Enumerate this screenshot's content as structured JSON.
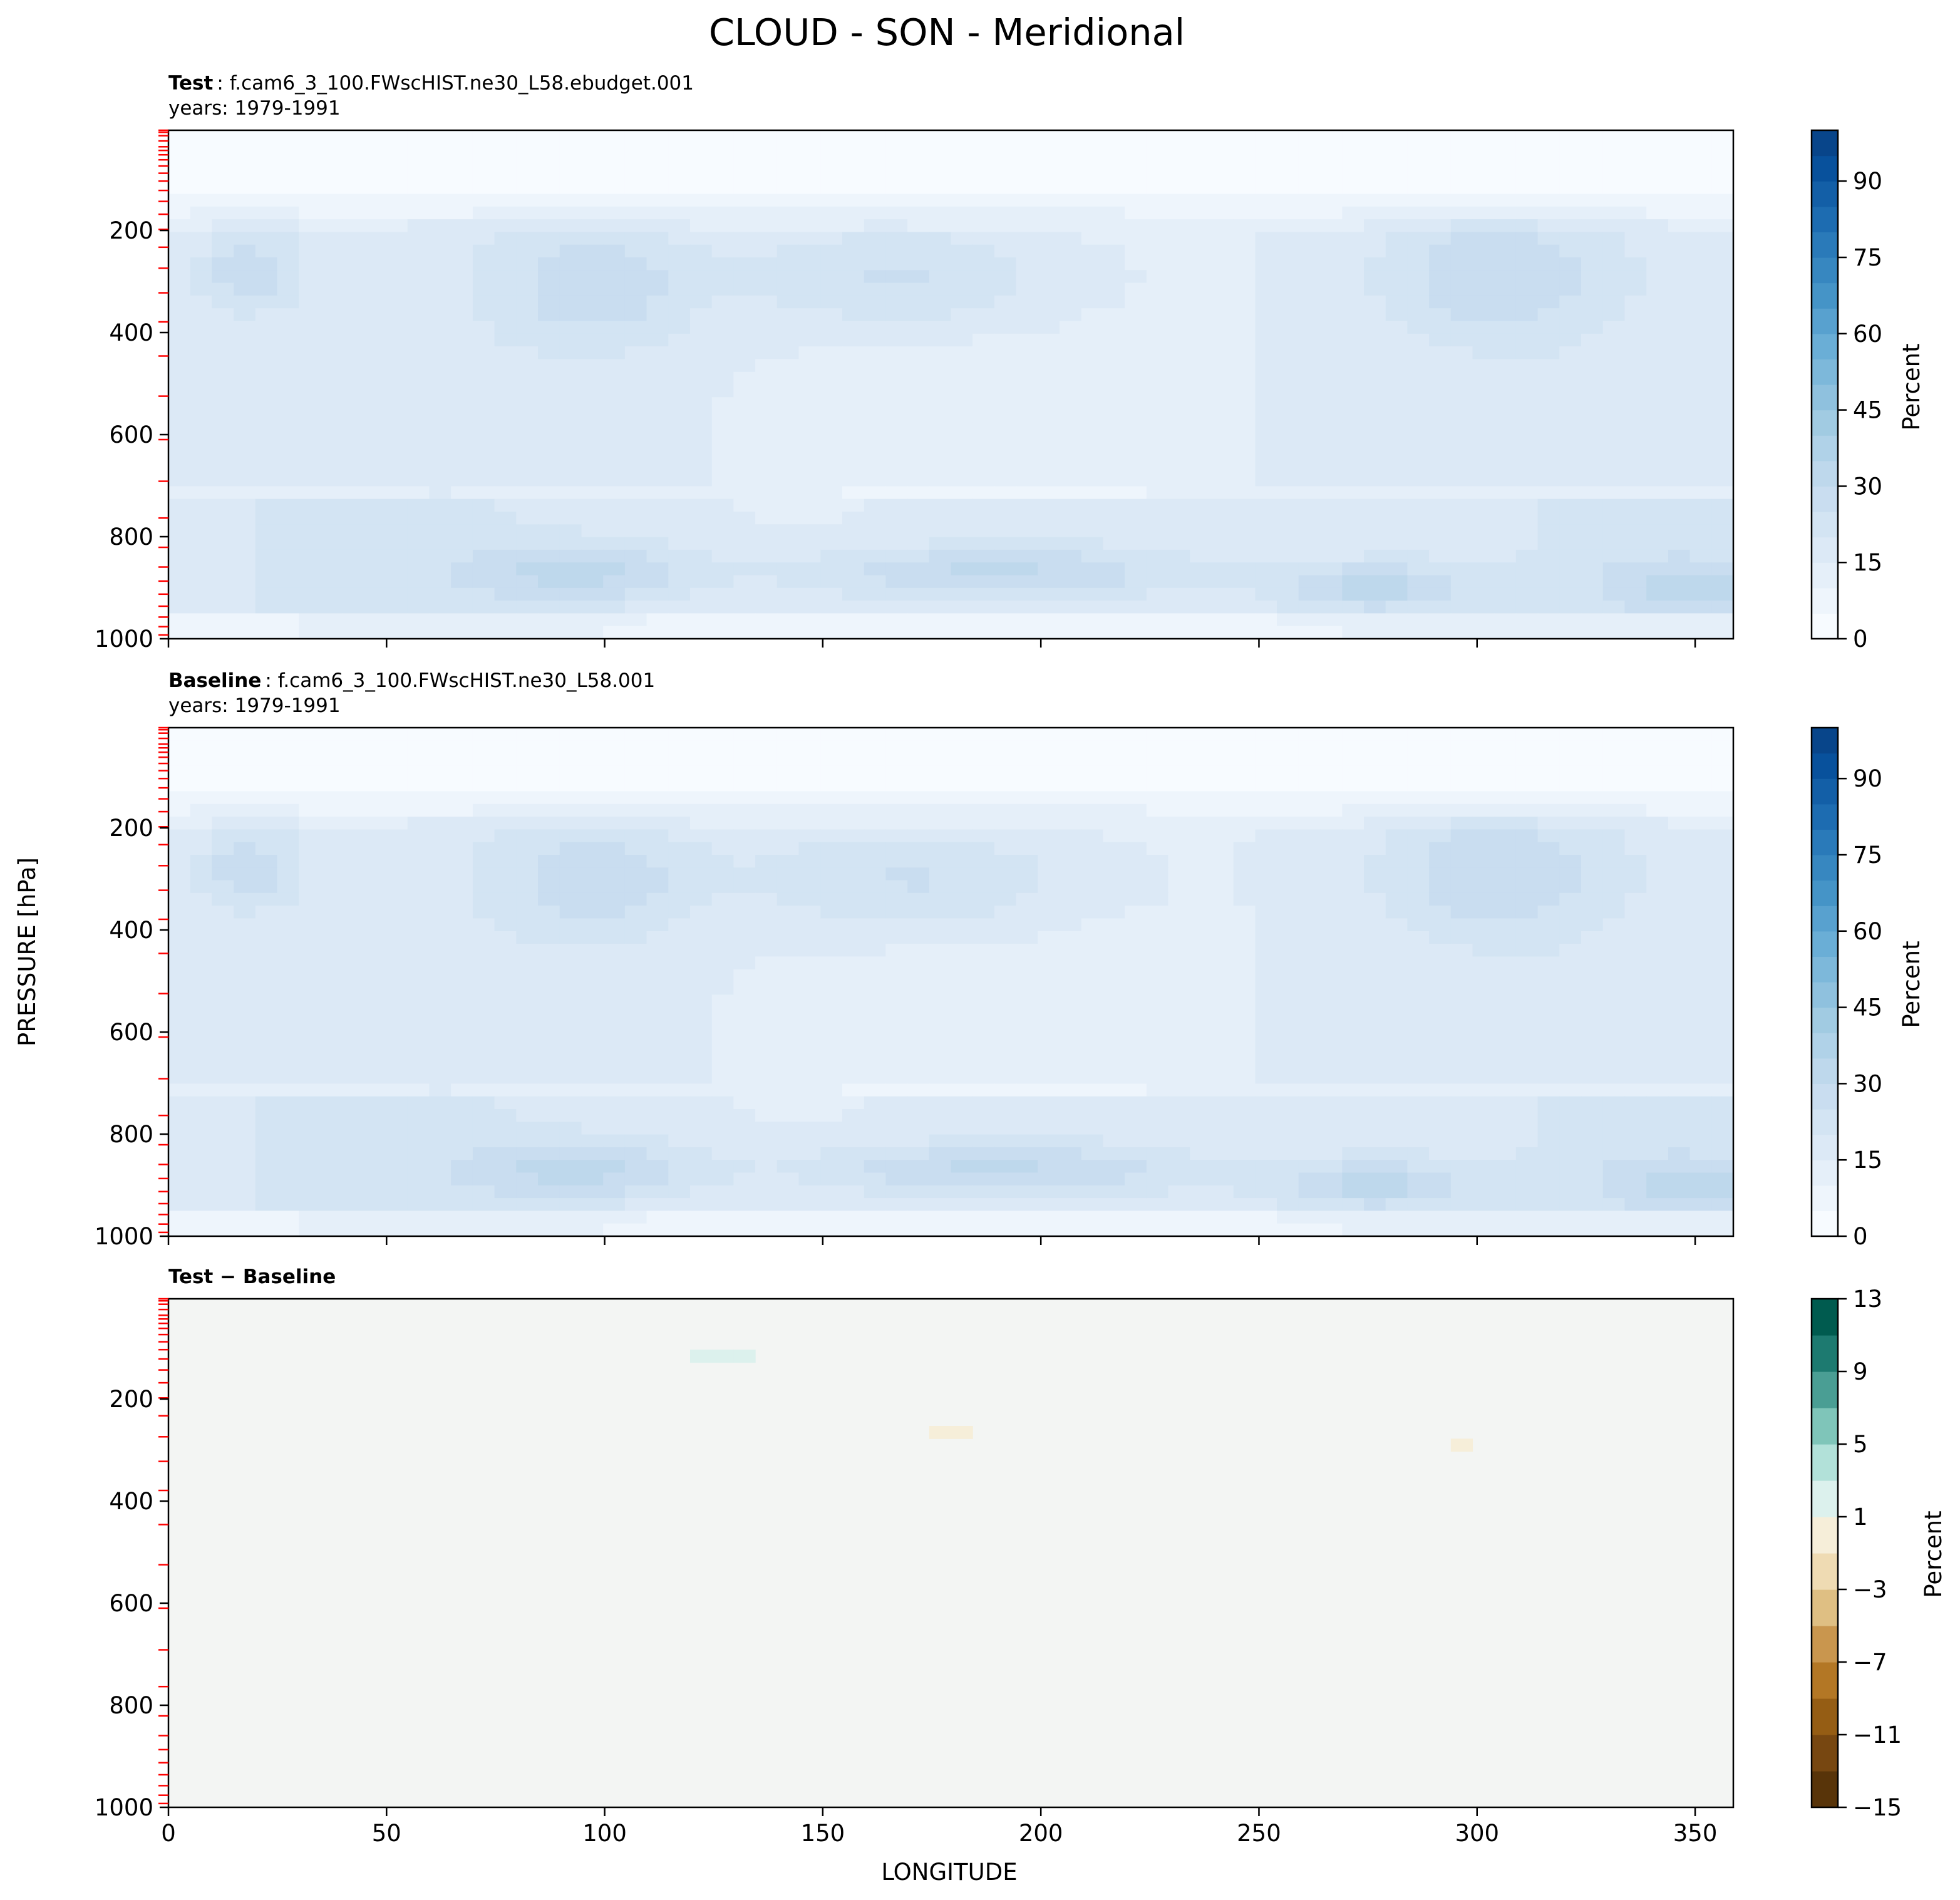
{
  "figure": {
    "title": "CLOUD - SON - Meridional",
    "y_axis_label": "PRESSURE [hPa]",
    "x_axis_label": "LONGITUDE"
  },
  "colors": {
    "blues": [
      "#f7fbff",
      "#eef5fc",
      "#e5eff9",
      "#dce9f6",
      "#d3e4f3",
      "#c9ddf0",
      "#bed8ec",
      "#b0d2e8",
      "#a1cbe2",
      "#8fc1de",
      "#7db8da",
      "#6aaed6",
      "#58a1cf",
      "#4594c7",
      "#3787c0",
      "#2a7ab9",
      "#1d6cb1",
      "#135fa7",
      "#08519c",
      "#08458a",
      "#083979",
      "#08306b"
    ],
    "diff": [
      "#583409",
      "#774711",
      "#955d14",
      "#b37725",
      "#c9964e",
      "#dfbf83",
      "#efdbb3",
      "#f6eed9",
      "#f5f5f5",
      "#dcf1ed",
      "#b2e1d9",
      "#7fc5b9",
      "#4a9e94",
      "#1d7a70",
      "#005b4f",
      "#003c30"
    ],
    "background_diff": "#f3f5f3",
    "mark_red": "#ff0000"
  },
  "chart_data": [
    {
      "type": "heatmap",
      "panel": "test",
      "label_bold": "Test",
      "label_rest": ": f.cam6_3_100.FWscHIST.ne30_L58.ebudget.001",
      "years": "years: 1979-1991",
      "x_range": [
        0,
        358.75
      ],
      "y_range": [
        1000,
        3.64
      ],
      "y_ticks": [
        "200",
        "400",
        "600",
        "800",
        "1000"
      ],
      "y_tick_values": [
        200,
        400,
        600,
        800,
        1000
      ],
      "x_tick_values": [
        0,
        50,
        100,
        150,
        200,
        250,
        300,
        350
      ],
      "colorbar": {
        "label": "Percent",
        "range": [
          0,
          100
        ],
        "levels_step": 5,
        "ticks": [
          "0",
          "15",
          "30",
          "45",
          "60",
          "75",
          "90"
        ],
        "tick_values": [
          0,
          15,
          30,
          45,
          60,
          75,
          90
        ]
      },
      "features": {
        "upper_blobs": [
          {
            "lon": 18,
            "p": 280,
            "value": 24,
            "dx": 12,
            "dp": 80
          },
          {
            "lon": 98,
            "p": 310,
            "value": 24,
            "dx": 22,
            "dp": 120
          },
          {
            "lon": 170,
            "p": 290,
            "value": 25,
            "dx": 38,
            "dp": 110
          },
          {
            "lon": 305,
            "p": 290,
            "value": 24,
            "dx": 26,
            "dp": 120
          }
        ],
        "lower_blobs": [
          {
            "lon": 95,
            "p": 870,
            "value": 26,
            "dx": 28,
            "dp": 60
          },
          {
            "lon": 188,
            "p": 870,
            "value": 27,
            "dx": 45,
            "dp": 55
          },
          {
            "lon": 275,
            "p": 900,
            "value": 27,
            "dx": 22,
            "dp": 50
          },
          {
            "lon": 350,
            "p": 900,
            "value": 24,
            "dx": 22,
            "dp": 60
          }
        ]
      }
    },
    {
      "type": "heatmap",
      "panel": "baseline",
      "label_bold": "Baseline",
      "label_rest": ": f.cam6_3_100.FWscHIST.ne30_L58.001",
      "years": "years: 1979-1991",
      "x_range": [
        0,
        358.75
      ],
      "y_range": [
        1000,
        3.64
      ],
      "y_ticks": [
        "200",
        "400",
        "600",
        "800",
        "1000"
      ],
      "y_tick_values": [
        200,
        400,
        600,
        800,
        1000
      ],
      "x_tick_values": [
        0,
        50,
        100,
        150,
        200,
        250,
        300,
        350
      ],
      "colorbar": {
        "label": "Percent",
        "range": [
          0,
          100
        ],
        "levels_step": 5,
        "ticks": [
          "0",
          "15",
          "30",
          "45",
          "60",
          "75",
          "90"
        ],
        "tick_values": [
          0,
          15,
          30,
          45,
          60,
          75,
          90
        ]
      },
      "features": {
        "upper_blobs": [
          {
            "lon": 18,
            "p": 280,
            "value": 24,
            "dx": 12,
            "dp": 80
          },
          {
            "lon": 98,
            "p": 300,
            "value": 24,
            "dx": 22,
            "dp": 110
          },
          {
            "lon": 172,
            "p": 300,
            "value": 25,
            "dx": 40,
            "dp": 110
          },
          {
            "lon": 305,
            "p": 290,
            "value": 24,
            "dx": 26,
            "dp": 120
          }
        ],
        "lower_blobs": [
          {
            "lon": 95,
            "p": 870,
            "value": 26,
            "dx": 28,
            "dp": 60
          },
          {
            "lon": 190,
            "p": 870,
            "value": 27,
            "dx": 45,
            "dp": 55
          },
          {
            "lon": 275,
            "p": 900,
            "value": 27,
            "dx": 22,
            "dp": 50
          },
          {
            "lon": 350,
            "p": 900,
            "value": 24,
            "dx": 22,
            "dp": 60
          }
        ]
      }
    },
    {
      "type": "heatmap",
      "panel": "difference",
      "label_bold": "Test − Baseline",
      "x_range": [
        0,
        358.75
      ],
      "y_range": [
        1000,
        3.64
      ],
      "y_ticks": [
        "200",
        "400",
        "600",
        "800",
        "1000"
      ],
      "y_tick_values": [
        200,
        400,
        600,
        800,
        1000
      ],
      "x_ticks": [
        "0",
        "50",
        "100",
        "150",
        "200",
        "250",
        "300",
        "350"
      ],
      "x_tick_values": [
        0,
        50,
        100,
        150,
        200,
        250,
        300,
        350
      ],
      "colorbar": {
        "label": "Percent",
        "range": [
          -15,
          13
        ],
        "levels_step": 2,
        "ticks": [
          "−15",
          "−11",
          "−7",
          "−3",
          "1",
          "5",
          "9",
          "13"
        ],
        "tick_values": [
          -15,
          -11,
          -7,
          -3,
          1,
          5,
          9,
          13
        ]
      },
      "features": [
        {
          "lon": 95,
          "p": 155,
          "value": 1.5,
          "dx": 4,
          "dp": 12
        },
        {
          "lon": 128,
          "p": 115,
          "value": 1.5,
          "dx": 12,
          "dp": 20
        },
        {
          "lon": 178,
          "p": 265,
          "value": -1.5,
          "dx": 7,
          "dp": 40
        },
        {
          "lon": 262,
          "p": 148,
          "value": -1.5,
          "dx": 3,
          "dp": 6
        },
        {
          "lon": 296,
          "p": 290,
          "value": -1.5,
          "dx": 2,
          "dp": 18
        },
        {
          "lon": 342,
          "p": 200,
          "value": -1.5,
          "dx": 1,
          "dp": 6
        },
        {
          "lon": 85,
          "p": 990,
          "value": 1.5,
          "dx": 1.5,
          "dp": 15
        }
      ]
    }
  ]
}
